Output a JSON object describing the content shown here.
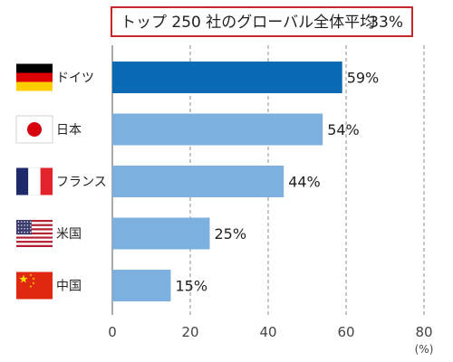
{
  "banner": {
    "text": "トップ 250 社のグローバル全体平均",
    "value": "33%"
  },
  "colors": {
    "highlight": "#0a6ab3",
    "bar": "#7cb0df",
    "banner_border": "#c62828",
    "grid": "#8c8c8c"
  },
  "flags": [
    "germany-flag",
    "japan-flag",
    "france-flag",
    "usa-flag",
    "china-flag"
  ],
  "chart_data": {
    "type": "bar",
    "orientation": "horizontal",
    "categories": [
      "ドイツ",
      "日本",
      "フランス",
      "米国",
      "中国"
    ],
    "values": [
      59,
      54,
      44,
      25,
      15
    ],
    "value_labels": [
      "59%",
      "54%",
      "44%",
      "25%",
      "15%"
    ],
    "highlight_category": "ドイツ",
    "xlim": [
      0,
      80
    ],
    "xticks": [
      0,
      20,
      40,
      60,
      80
    ],
    "x_unit": "(%)",
    "grid": true,
    "grid_style": "dashed-vertical"
  }
}
